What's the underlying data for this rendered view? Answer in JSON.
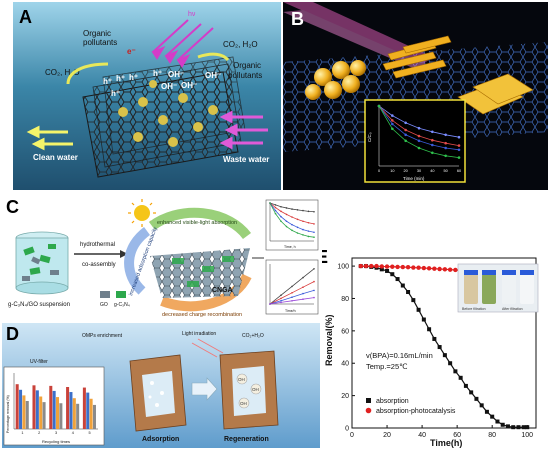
{
  "panels": {
    "A": {
      "label": "A",
      "light": "hν",
      "products_left": "CO₂, H₂O",
      "products_right": "CO₂, H₂O",
      "pollutants_left": [
        "Organic",
        "pollutants"
      ],
      "pollutants_right": [
        "Organic",
        "pollutants"
      ],
      "holes": [
        "h⁺",
        "h⁺",
        "h⁺",
        "h⁺",
        "h⁺"
      ],
      "electron": "e⁻",
      "radicals": [
        "OH⁻",
        "OH⁻",
        "OH⁻",
        "OH⁻"
      ],
      "clean_water": "Clean water",
      "waste_water": "Waste water"
    },
    "B": {
      "label": "B",
      "inset": {
        "xlabel": "Time (min)",
        "ylabel": "C/C₀",
        "xticks": [
          "0",
          "10",
          "20",
          "30",
          "40",
          "50",
          "60"
        ]
      }
    },
    "C": {
      "label": "C",
      "enhanced": "enhanced visible-light absorption",
      "increased": "increased adsorption capacity",
      "decreased": "decreased charge recombination",
      "process": [
        "hydrothermal",
        "co-assembly"
      ],
      "product": "CNGA",
      "suspension": "g-C₃N₄/GO suspension",
      "legend_go": "GO",
      "legend_gcn": "g-C₃N₄",
      "chart1_xlabel": "Time, h",
      "chart2_xlabel": "Time/h"
    },
    "D": {
      "label": "D",
      "enrichment": "OMPs enrichment",
      "light": "Light irradiation",
      "products": "CO₂+H₂O",
      "uv": "UV-filter",
      "adsorption": "Adsorption",
      "regeneration": "Regeneration",
      "radical": "OH",
      "bar_xlabel": "Recycling times",
      "bar_ylabel": "Percentage removal (%)"
    },
    "E": {
      "label": "E",
      "ylabel": "Removal(%)",
      "xlabel": "Time(h)",
      "annotation_1": "v(BPA)=0.16mL/min",
      "annotation_2": "Temp.=25℃",
      "photo_label_before": "Before filtration",
      "photo_label_after": "After filtration"
    }
  },
  "colors": {
    "panel_a_water": "#3b86a8",
    "panel_b_bg": "#05070d",
    "panel_d_water": "#7fb2d6",
    "absorption_series": "#111111",
    "photocatalysis_series": "#e02020"
  },
  "chart_data": [
    {
      "type": "scatter",
      "id": "panel-e",
      "xlabel": "Time(h)",
      "ylabel": "Removal(%)",
      "xlim": [
        0,
        105
      ],
      "ylim": [
        0,
        105
      ],
      "xticks": [
        0,
        20,
        40,
        60,
        80,
        100
      ],
      "yticks": [
        0,
        20,
        40,
        60,
        80,
        100
      ],
      "legend_position": "bottom-left",
      "series": [
        {
          "name": "absorption",
          "color": "#111111",
          "marker": "square",
          "x": [
            5,
            8,
            11,
            14,
            17,
            20,
            23,
            26,
            29,
            32,
            35,
            38,
            41,
            44,
            47,
            50,
            53,
            56,
            59,
            62,
            65,
            68,
            71,
            74,
            77,
            80,
            83,
            86,
            89,
            92,
            95,
            98,
            100
          ],
          "y": [
            100,
            100,
            99.5,
            99,
            98,
            97,
            95,
            92,
            88,
            84,
            79,
            73,
            67,
            61,
            55,
            50,
            45,
            40,
            35,
            31,
            26,
            22,
            18,
            14,
            10,
            7,
            4,
            2,
            1,
            0.5,
            0.5,
            0.5,
            0.5
          ]
        },
        {
          "name": "absorption-photocatalysis",
          "color": "#e02020",
          "marker": "circle",
          "x": [
            5,
            8,
            11,
            14,
            17,
            20,
            23,
            26,
            29,
            32,
            35,
            38,
            41,
            44,
            47,
            50,
            53,
            56,
            59,
            62,
            65,
            68,
            71,
            74,
            77,
            80,
            83,
            86,
            89,
            92,
            95,
            98,
            100
          ],
          "y": [
            100,
            100,
            100,
            100,
            99.8,
            99.7,
            99.6,
            99.5,
            99.4,
            99.3,
            99.1,
            99,
            98.8,
            98.6,
            98.4,
            98.2,
            98,
            97.8,
            97.6,
            97.4,
            97.2,
            97,
            96.8,
            96.5,
            96.2,
            96,
            95.7,
            95.4,
            95,
            94.6,
            94.3,
            94,
            93.8
          ]
        }
      ]
    },
    {
      "type": "line",
      "id": "panel-b-inset",
      "xlabel": "Time (min)",
      "ylabel": "C/C₀",
      "xlim": [
        0,
        60
      ],
      "ylim": [
        0,
        1
      ],
      "x": [
        0,
        10,
        20,
        30,
        40,
        50,
        60
      ],
      "series": [
        {
          "color": "#7a8cff",
          "values": [
            1.0,
            0.84,
            0.72,
            0.63,
            0.57,
            0.52,
            0.48
          ]
        },
        {
          "color": "#e24b4b",
          "values": [
            1.0,
            0.76,
            0.6,
            0.5,
            0.43,
            0.38,
            0.34
          ]
        },
        {
          "color": "#3b5bd9",
          "values": [
            1.0,
            0.7,
            0.52,
            0.42,
            0.35,
            0.3,
            0.27
          ]
        },
        {
          "color": "#2fbf4c",
          "values": [
            1.0,
            0.62,
            0.42,
            0.3,
            0.22,
            0.17,
            0.14
          ]
        }
      ]
    },
    {
      "type": "line",
      "id": "panel-c-chart-1",
      "xlabel": "Time, h",
      "xlim": [
        0,
        4
      ],
      "ylim": [
        0,
        1
      ],
      "x": [
        0,
        0.5,
        1,
        1.5,
        2,
        2.5,
        3,
        3.5,
        4
      ],
      "series": [
        {
          "color": "#444444",
          "values": [
            1.0,
            0.95,
            0.9,
            0.87,
            0.84,
            0.82,
            0.8,
            0.78,
            0.77
          ]
        },
        {
          "color": "#d93b3b",
          "values": [
            1.0,
            0.88,
            0.78,
            0.7,
            0.63,
            0.57,
            0.52,
            0.48,
            0.45
          ]
        },
        {
          "color": "#3b5bd9",
          "values": [
            1.0,
            0.8,
            0.64,
            0.52,
            0.43,
            0.36,
            0.3,
            0.26,
            0.23
          ]
        },
        {
          "color": "#2fa84c",
          "values": [
            1.0,
            0.72,
            0.52,
            0.38,
            0.28,
            0.21,
            0.16,
            0.12,
            0.1
          ]
        }
      ]
    },
    {
      "type": "line",
      "id": "panel-c-chart-2",
      "xlabel": "Time/h",
      "xlim": [
        0,
        4
      ],
      "ylim": [
        0,
        1
      ],
      "x": [
        0,
        1,
        2,
        3,
        4
      ],
      "series": [
        {
          "color": "#444444",
          "values": [
            0,
            0.22,
            0.44,
            0.66,
            0.88
          ]
        },
        {
          "color": "#d93b3b",
          "values": [
            0,
            0.14,
            0.28,
            0.42,
            0.56
          ]
        },
        {
          "color": "#3b5bd9",
          "values": [
            0,
            0.08,
            0.17,
            0.26,
            0.34
          ]
        },
        {
          "color": "#9b4bd9",
          "values": [
            0,
            0.04,
            0.08,
            0.12,
            0.16
          ]
        }
      ]
    },
    {
      "type": "bar",
      "id": "panel-d-inset",
      "xlabel": "Recycling times",
      "ylabel": "Percentage removal (%)",
      "ylim": [
        0,
        100
      ],
      "categories": [
        "1",
        "2",
        "3",
        "4",
        "5"
      ],
      "series": [
        {
          "color": "#c9423a",
          "values": [
            80,
            78,
            77,
            75,
            74
          ]
        },
        {
          "color": "#3b6fc9",
          "values": [
            70,
            69,
            68,
            66,
            65
          ]
        },
        {
          "color": "#f0a23b",
          "values": [
            60,
            58,
            57,
            55,
            54
          ]
        },
        {
          "color": "#8a8a8a",
          "values": [
            50,
            48,
            46,
            45,
            43
          ]
        }
      ]
    }
  ]
}
